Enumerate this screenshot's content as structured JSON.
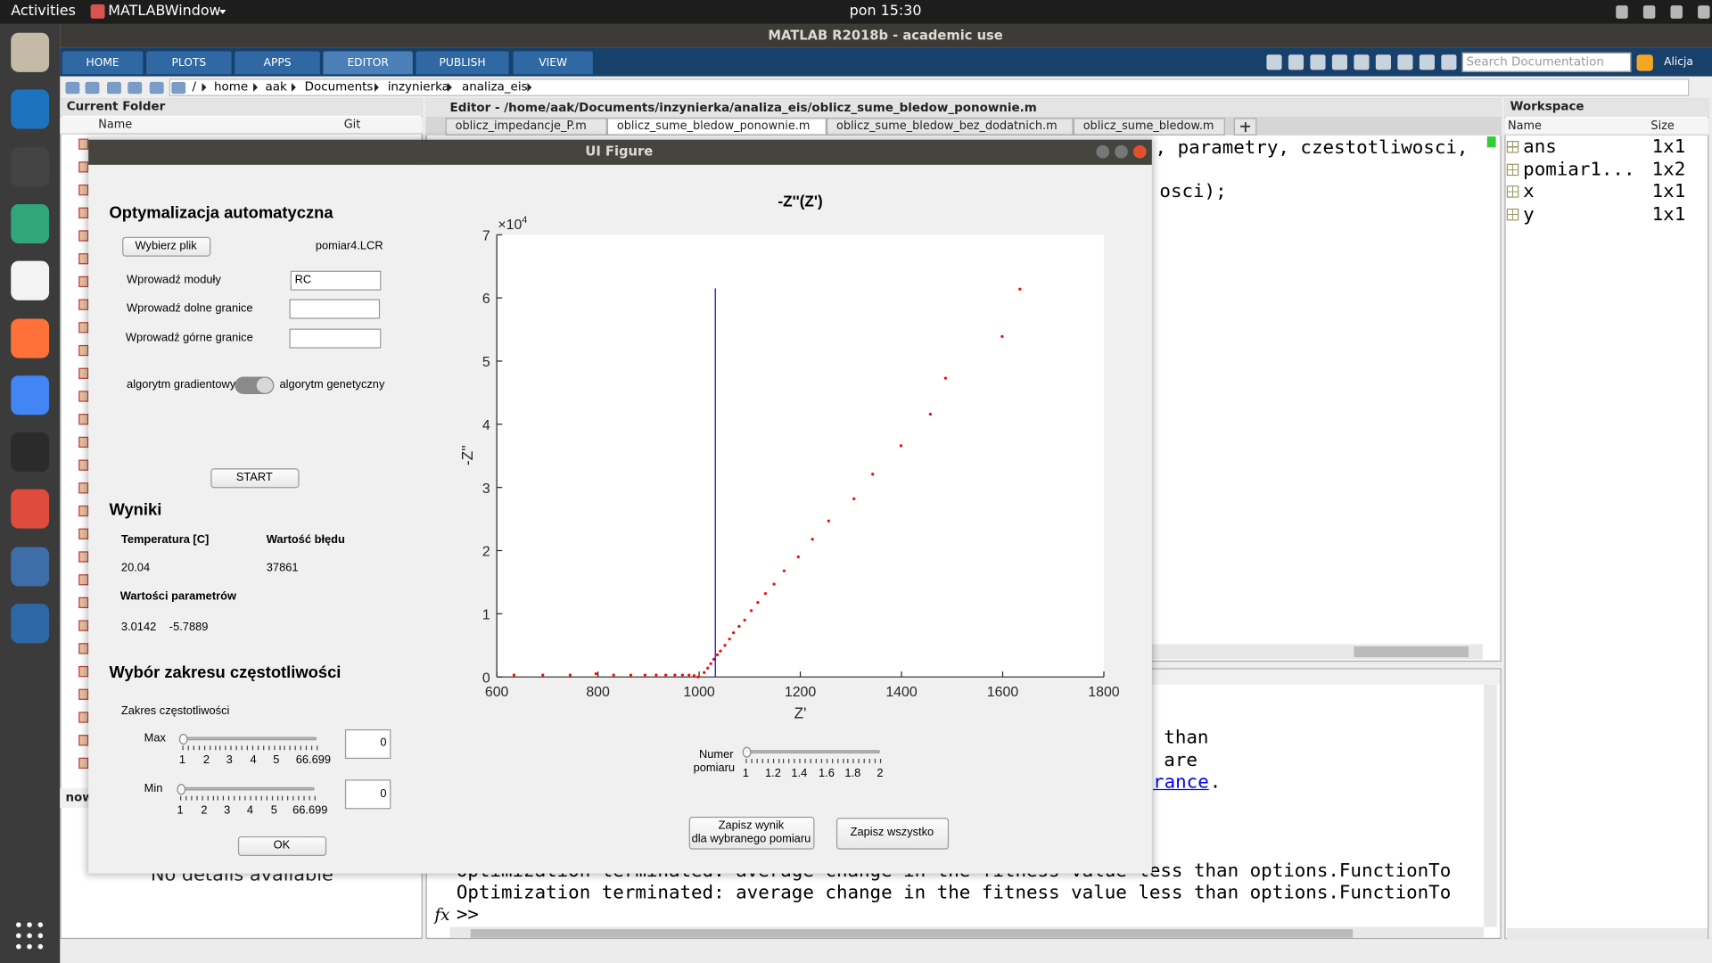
{
  "top_bar": {
    "activities": "Activities",
    "app": "MATLABWindow",
    "clock": "pon 15:30",
    "user": "Alicja"
  },
  "window_title": "MATLAB R2018b - academic use",
  "toolstrip_tabs": [
    "HOME",
    "PLOTS",
    "APPS",
    "EDITOR",
    "PUBLISH",
    "VIEW"
  ],
  "search_placeholder": "Search Documentation",
  "address": [
    "/",
    "home",
    "aak",
    "Documents",
    "inzynierka",
    "analiza_eis"
  ],
  "current_folder": {
    "title": "Current Folder",
    "columns": [
      "Name",
      "Git"
    ],
    "label": "now",
    "details": "No details available"
  },
  "editor": {
    "title": "Editor - /home/aak/Documents/inzynierka/analiza_eis/oblicz_sume_bledow_ponownie.m",
    "tabs": [
      "oblicz_impedancje_P.m",
      "oblicz_sume_bledow_ponownie.m",
      "oblicz_sume_bledow_bez_dodatnich.m",
      "oblicz_sume_bledow.m"
    ],
    "code": [
      ", parametry, czestotliwosci,",
      "osci);"
    ]
  },
  "command_window": {
    "lines": [
      "than",
      "are"
    ],
    "link": "rance",
    "link_end": ".",
    "output": [
      "Optimization terminated: average change in the fitness value less than options.FunctionTo",
      "Optimization terminated: average change in the fitness value less than options.FunctionTo"
    ],
    "fx": "fx",
    "prompt": ">>"
  },
  "workspace": {
    "title": "Workspace",
    "columns": [
      "Name",
      "Size"
    ],
    "rows": [
      [
        "ans",
        "1x1"
      ],
      [
        "pomiar1...",
        "1x2"
      ],
      [
        "x",
        "1x1"
      ],
      [
        "y",
        "1x1"
      ]
    ]
  },
  "ui_figure": {
    "title": "UI Figure",
    "auto_heading": "Optymalizacja automatyczna",
    "choose_file": "Wybierz plik",
    "file_name": "pomiar4.LCR",
    "modules_label": "Wprowadź moduły",
    "modules_value": "RC",
    "lower_label": "Wprowadź dolne granice",
    "upper_label": "Wprowadź górne granice",
    "algo_left": "algorytm gradientowy",
    "algo_right": "algorytm genetyczny",
    "start": "START",
    "results_heading": "Wyniki",
    "temp_label": "Temperatura [C]",
    "error_label": "Wartość błędu",
    "temp_value": 20.04,
    "error_value": 37861,
    "params_label": "Wartości parametrów",
    "params": [
      3.0142,
      -5.7889
    ],
    "range_heading": "Wybór zakresu częstotliwości",
    "range_label": "Zakres częstotliwości",
    "max_label": "Max",
    "min_label": "Min",
    "range_ticks": [
      1,
      2,
      3,
      4,
      5,
      66.699
    ],
    "max_value": 0,
    "min_value": 0,
    "ok": "OK",
    "measurement_label": [
      "Numer",
      "pomiaru"
    ],
    "measurement_ticks": [
      1,
      1.2,
      1.4,
      1.6,
      1.8,
      2
    ],
    "save_selected": [
      "Zapisz wynik",
      "dla wybranego pomiaru"
    ],
    "save_all": "Zapisz wszystko"
  },
  "chart_data": {
    "type": "scatter",
    "title": "-Z''(Z')",
    "x_label": "Z'",
    "y_label": "-Z''",
    "y_multiplier": "×10",
    "y_multiplier_exp": "4",
    "xlim": [
      600,
      1800
    ],
    "ylim": [
      0,
      7
    ],
    "xticks": [
      600,
      800,
      1000,
      1200,
      1400,
      1600,
      1800
    ],
    "yticks": [
      0,
      1,
      2,
      3,
      4,
      5,
      6,
      7
    ],
    "series": [
      {
        "color": "#ff0000",
        "mark": "point",
        "x": [
          634,
          691,
          745,
          796,
          831,
          865,
          893,
          915,
          934,
          952,
          967,
          980,
          990,
          998,
          1010,
          1017,
          1023,
          1029,
          1036,
          1042,
          1051,
          1060,
          1068,
          1079,
          1090,
          1103,
          1116,
          1131,
          1148,
          1168,
          1196,
          1224,
          1256,
          1306,
          1343,
          1399,
          1457,
          1487,
          1599,
          1634
        ],
        "values": [
          0.03,
          0.03,
          0.03,
          0.05,
          0.03,
          0.03,
          0.03,
          0.03,
          0.03,
          0.03,
          0.03,
          0.03,
          0.02,
          0,
          0.07,
          0.14,
          0.21,
          0.28,
          0.35,
          0.41,
          0.5,
          0.6,
          0.7,
          0.8,
          0.9,
          1.05,
          1.18,
          1.32,
          1.47,
          1.68,
          1.9,
          2.18,
          2.47,
          2.82,
          3.21,
          3.66,
          4.16,
          4.73,
          5.39,
          6.14
        ]
      },
      {
        "color": "#0000ff",
        "mark": "line",
        "x": [
          1032,
          1032
        ],
        "values": [
          0,
          6.15
        ]
      }
    ]
  }
}
